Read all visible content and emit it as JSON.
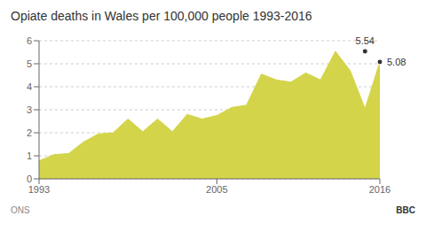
{
  "chart_data": {
    "type": "area",
    "title": "Opiate deaths in Wales per 100,000 people 1993-2016",
    "x": [
      1993,
      1994,
      1995,
      1996,
      1997,
      1998,
      1999,
      2000,
      2001,
      2002,
      2003,
      2004,
      2005,
      2006,
      2007,
      2008,
      2009,
      2010,
      2011,
      2012,
      2013,
      2014,
      2015,
      2016
    ],
    "values": [
      0.78,
      1.05,
      1.1,
      1.6,
      1.95,
      2.0,
      2.6,
      2.05,
      2.6,
      2.05,
      2.8,
      2.6,
      2.75,
      3.1,
      3.2,
      4.55,
      4.3,
      4.2,
      4.6,
      4.3,
      5.54,
      4.7,
      3.05,
      5.08
    ],
    "color": "#d4d44a",
    "xlim": [
      1993,
      2016
    ],
    "ylim": [
      0,
      6
    ],
    "xticks": [
      1993,
      2005,
      2016
    ],
    "yticks": [
      0,
      1,
      2,
      3,
      4,
      5,
      6
    ],
    "grid": true,
    "annotations": [
      {
        "text": "5.54",
        "x": 2015,
        "y": 5.54,
        "position": "top"
      },
      {
        "text": "5.08",
        "x": 2016,
        "y": 5.08,
        "position": "right"
      }
    ],
    "source": "ONS",
    "credit": "BBC"
  }
}
